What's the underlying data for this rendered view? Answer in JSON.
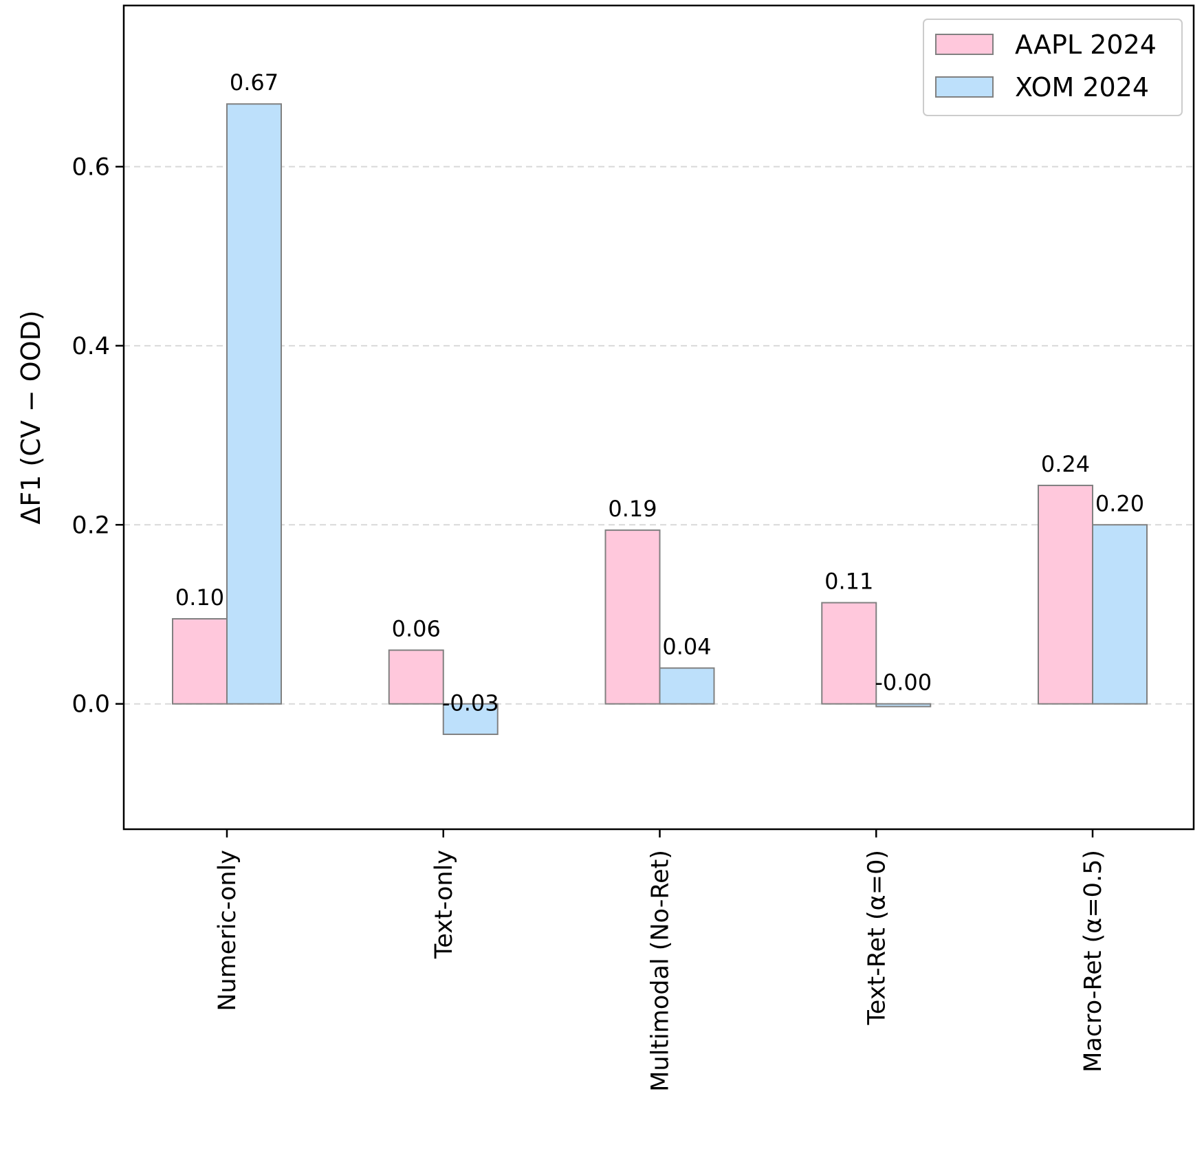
{
  "chart_data": {
    "type": "bar",
    "title": "",
    "xlabel": "",
    "ylabel": "ΔF1 (CV − OOD)",
    "categories": [
      "Numeric-only",
      "Text-only",
      "Multimodal (No-Ret)",
      "Text-Ret (α=0)",
      "Macro-Ret (α=0.5)"
    ],
    "series": [
      {
        "name": "AAPL 2024",
        "color": "#ffc8dc",
        "values": [
          0.095,
          0.06,
          0.194,
          0.113,
          0.244
        ],
        "labels": [
          "0.10",
          "0.06",
          "0.19",
          "0.11",
          "0.24"
        ]
      },
      {
        "name": "XOM 2024",
        "color": "#bde0fb",
        "values": [
          0.67,
          -0.034,
          0.04,
          -0.003,
          0.2
        ],
        "labels": [
          "0.67",
          "-0.03",
          "0.04",
          "-0.00",
          "0.20"
        ]
      }
    ],
    "ylim": [
      -0.14,
      0.78
    ],
    "yticks": [
      0.0,
      0.2,
      0.4,
      0.6
    ],
    "ytick_labels": [
      "0.0",
      "0.2",
      "0.4",
      "0.6"
    ],
    "grid": "y-dashed",
    "legend_position": "top-right",
    "bar_edge_color": "#808080"
  }
}
